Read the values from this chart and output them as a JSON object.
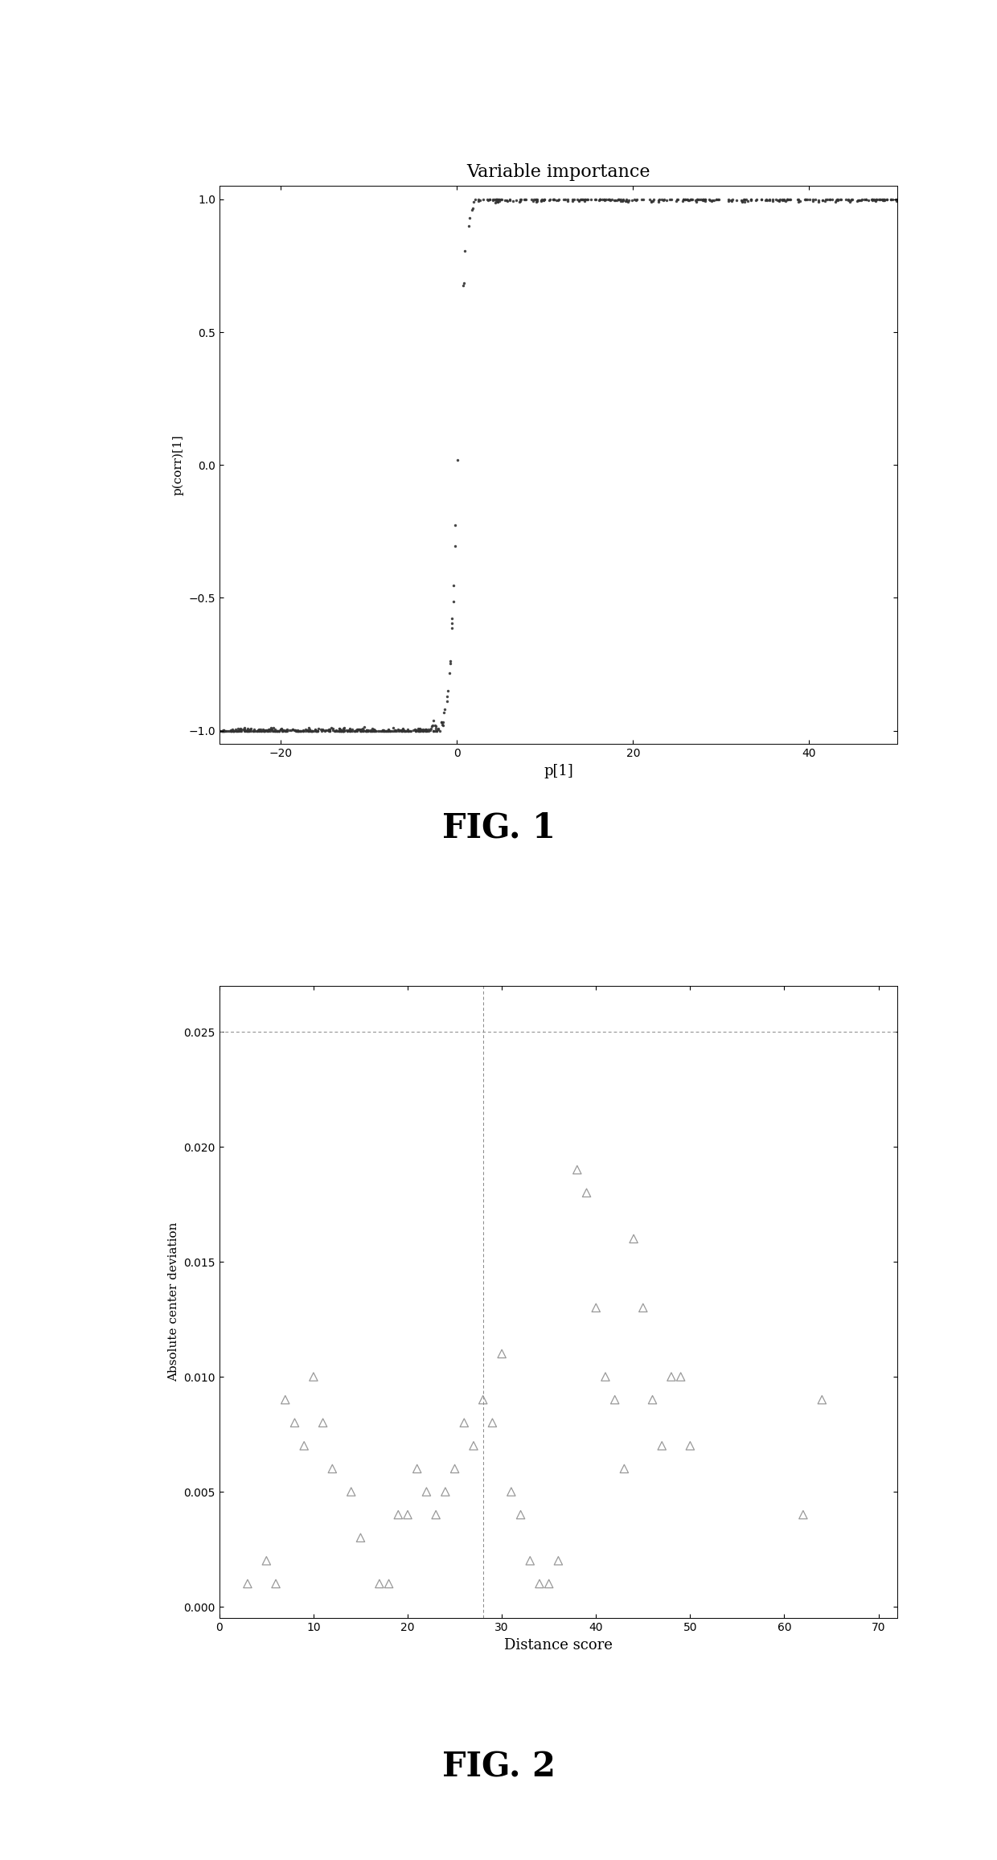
{
  "fig1": {
    "title": "Variable importance",
    "xlabel": "p[1]",
    "ylabel": "p(corr)[1]",
    "xlim": [
      -27,
      50
    ],
    "ylim": [
      -1.05,
      1.05
    ],
    "xticks": [
      -20,
      0,
      20,
      40
    ],
    "yticks": [
      -1.0,
      -0.5,
      0.0,
      0.5,
      1.0
    ],
    "dot_color": "#333333",
    "dot_size": 6
  },
  "fig2": {
    "xlabel": "Distance score",
    "ylabel": "Absolute center deviation",
    "xlim": [
      0,
      72
    ],
    "ylim": [
      -0.0005,
      0.027
    ],
    "xticks": [
      0,
      10,
      20,
      30,
      40,
      50,
      60,
      70
    ],
    "yticks": [
      0,
      0.005,
      0.01,
      0.015,
      0.02,
      0.025
    ],
    "hline_y": 0.025,
    "vline_x": 28,
    "triangle_color": "#bbbbbb",
    "triangle_edge": "#999999",
    "triangle_size": 55,
    "scatter_data": [
      [
        3,
        0.001
      ],
      [
        5,
        0.002
      ],
      [
        6,
        0.001
      ],
      [
        7,
        0.009
      ],
      [
        8,
        0.008
      ],
      [
        9,
        0.007
      ],
      [
        10,
        0.01
      ],
      [
        11,
        0.008
      ],
      [
        12,
        0.006
      ],
      [
        14,
        0.005
      ],
      [
        15,
        0.003
      ],
      [
        17,
        0.001
      ],
      [
        18,
        0.001
      ],
      [
        19,
        0.004
      ],
      [
        20,
        0.004
      ],
      [
        21,
        0.006
      ],
      [
        22,
        0.005
      ],
      [
        23,
        0.004
      ],
      [
        24,
        0.005
      ],
      [
        25,
        0.006
      ],
      [
        26,
        0.008
      ],
      [
        27,
        0.007
      ],
      [
        28,
        0.009
      ],
      [
        29,
        0.008
      ],
      [
        30,
        0.011
      ],
      [
        31,
        0.005
      ],
      [
        32,
        0.004
      ],
      [
        33,
        0.002
      ],
      [
        34,
        0.001
      ],
      [
        35,
        0.001
      ],
      [
        36,
        0.002
      ],
      [
        38,
        0.019
      ],
      [
        39,
        0.018
      ],
      [
        40,
        0.013
      ],
      [
        41,
        0.01
      ],
      [
        42,
        0.009
      ],
      [
        43,
        0.006
      ],
      [
        44,
        0.016
      ],
      [
        45,
        0.013
      ],
      [
        46,
        0.009
      ],
      [
        47,
        0.007
      ],
      [
        48,
        0.01
      ],
      [
        49,
        0.01
      ],
      [
        50,
        0.007
      ],
      [
        62,
        0.004
      ],
      [
        64,
        0.009
      ]
    ]
  },
  "fig1_label": "FIG. 1",
  "fig2_label": "FIG. 2",
  "background_color": "#ffffff",
  "border_color": "#000000"
}
